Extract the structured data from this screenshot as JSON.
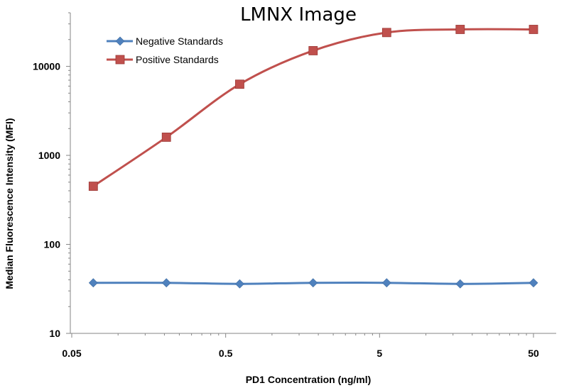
{
  "chart_data": {
    "type": "line",
    "title": "LMNX Image",
    "xlabel": "PD1 Concentration (ng/ml)",
    "ylabel": "Median Fluorescence Intensity (MFI)",
    "x_scale": "log",
    "y_scale": "log",
    "xlim": [
      0.05,
      50
    ],
    "ylim": [
      10,
      40000
    ],
    "x_ticks": [
      0.05,
      0.5,
      5,
      50
    ],
    "x_tick_labels": [
      "0.05",
      "0.5",
      "5",
      "50"
    ],
    "y_ticks": [
      10,
      100,
      1000,
      10000
    ],
    "y_tick_labels": [
      "10",
      "100",
      "1000",
      "10000"
    ],
    "grid": false,
    "legend_position": "top-left",
    "x": [
      0.069,
      0.206,
      0.617,
      1.85,
      5.56,
      16.7,
      50
    ],
    "series": [
      {
        "name": "Negative Standards",
        "color": "#4F81BD",
        "marker": "diamond",
        "values": [
          37,
          37,
          36,
          37,
          37,
          36,
          37
        ]
      },
      {
        "name": "Positive Standards",
        "color": "#C0504D",
        "marker": "square",
        "values": [
          450,
          1600,
          6300,
          15000,
          24000,
          26000,
          26000
        ]
      }
    ]
  }
}
